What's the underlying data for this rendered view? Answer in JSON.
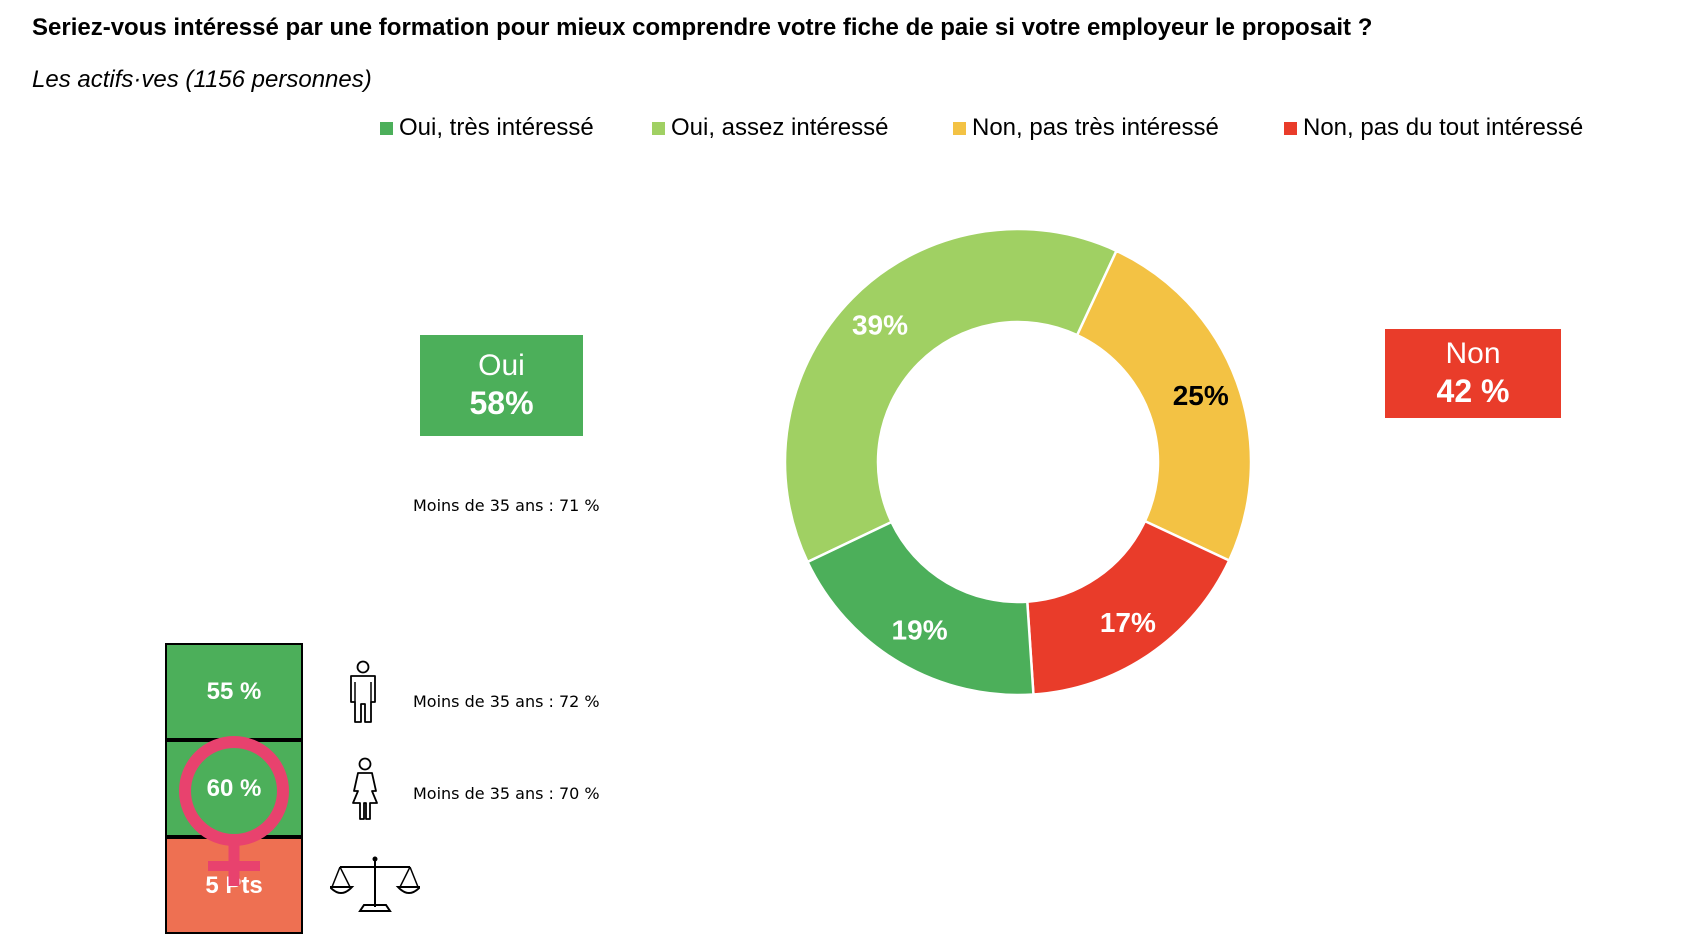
{
  "title": "Seriez-vous intéressé par une formation pour mieux comprendre votre fiche de paie si votre employeur le proposait ?",
  "subtitle": "Les actifs·ves (1156 personnes)",
  "colors": {
    "tres_interesse": "#4CAF5A",
    "assez_interesse": "#A0D063",
    "pas_tres": "#F3C244",
    "pas_du_tout": "#E93C2A",
    "gap": "#EE7052",
    "female_symbol": "#E8426E"
  },
  "legend": [
    {
      "label": "Oui, très intéressé",
      "color": "#4CAF5A"
    },
    {
      "label": "Oui, assez intéressé",
      "color": "#A0D063"
    },
    {
      "label": "Non, pas très intéressé",
      "color": "#F3C244"
    },
    {
      "label": "Non, pas du tout intéressé",
      "color": "#E93C2A"
    }
  ],
  "oui_box": {
    "label": "Oui",
    "value": "58%"
  },
  "non_box": {
    "label": "Non",
    "value": "42 %"
  },
  "notes": {
    "oui_under35": "Moins de 35 ans : 71 %",
    "men_under35": "Moins de 35 ans : 72 %",
    "women_under35": "Moins de 35 ans : 70 %"
  },
  "gender": {
    "men": "55 %",
    "women": "60 %",
    "gap": "5 Pts"
  },
  "icons": [
    "man-icon",
    "woman-icon",
    "scales-icon",
    "female-symbol-icon"
  ],
  "chart_data": {
    "type": "pie",
    "donut": true,
    "slices": [
      {
        "label": "Oui, assez intéressé",
        "value": 39,
        "display": "39%",
        "color": "#A0D063"
      },
      {
        "label": "Non, pas très intéressé",
        "value": 25,
        "display": "25%",
        "color": "#F3C244"
      },
      {
        "label": "Non, pas du tout intéressé",
        "value": 17,
        "display": "17%",
        "color": "#E93C2A"
      },
      {
        "label": "Oui, très intéressé",
        "value": 19,
        "display": "19%",
        "color": "#4CAF5A"
      }
    ]
  }
}
